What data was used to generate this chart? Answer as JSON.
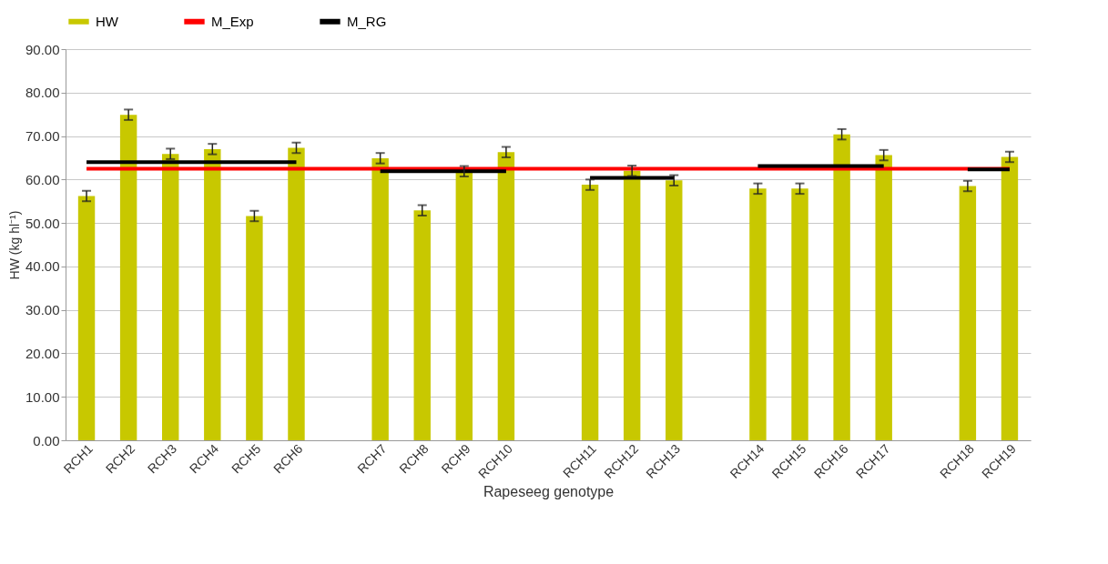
{
  "chart_data": {
    "type": "bar",
    "xlabel": "Rapeseeg genotype",
    "ylabel": "HW (kg hl⁻¹)",
    "categories": [
      "RCH1",
      "RCH2",
      "RCH3",
      "RCH4",
      "RCH5",
      "RCH6",
      null,
      "RCH7",
      "RCH8",
      "RCH9",
      "RCH10",
      null,
      "RCH11",
      "RCH12",
      "RCH13",
      null,
      "RCH14",
      "RCH15",
      "RCH16",
      "RCH17",
      null,
      "RCH18",
      "RCH19"
    ],
    "series": [
      {
        "name": "HW",
        "color": "#c8c800",
        "values": [
          56.2,
          74.9,
          65.9,
          67,
          51.6,
          67.3,
          null,
          64.9,
          52.9,
          61.9,
          66.3,
          null,
          58.8,
          62,
          59.8,
          null,
          57.9,
          57.9,
          70.4,
          65.6,
          null,
          58.5,
          65.2
        ],
        "errors": [
          1.2,
          1.2,
          1.2,
          1.2,
          1.2,
          1.2,
          null,
          1.2,
          1.2,
          1.2,
          1.2,
          null,
          1.2,
          1.2,
          1.2,
          null,
          1.2,
          1.2,
          1.2,
          1.2,
          null,
          1.2,
          1.2
        ]
      },
      {
        "name": "M_Exp",
        "type": "line",
        "color": "#ff0000",
        "values": [
          62.5,
          62.5,
          62.5,
          62.5,
          62.5,
          62.5,
          62.5,
          62.5,
          62.5,
          62.5,
          62.5,
          62.5,
          62.5,
          62.5,
          62.5,
          62.5,
          62.5,
          62.5,
          62.5,
          62.5,
          62.5,
          62.5,
          62.5
        ]
      },
      {
        "name": "M_RG",
        "type": "line",
        "color": "#000000",
        "values": [
          64,
          64,
          64,
          64,
          64,
          64,
          null,
          61.9,
          61.9,
          61.9,
          61.9,
          null,
          60.4,
          60.4,
          60.4,
          null,
          63.1,
          63.1,
          63.1,
          63.1,
          null,
          62.3,
          62.3
        ]
      }
    ],
    "ylim": [
      0,
      90
    ],
    "yticks": [
      {
        "value": 0,
        "label": "0.00"
      },
      {
        "value": 10,
        "label": "10.00"
      },
      {
        "value": 20,
        "label": "20.00"
      },
      {
        "value": 30,
        "label": "30.00"
      },
      {
        "value": 40,
        "label": "40.00"
      },
      {
        "value": 50,
        "label": "50.00"
      },
      {
        "value": 60,
        "label": "60.00"
      },
      {
        "value": 70,
        "label": "70.00"
      },
      {
        "value": 80,
        "label": "80.00"
      },
      {
        "value": 90,
        "label": "90.00"
      }
    ],
    "grid": "y",
    "legend": "top",
    "line_style": "solid",
    "marker": "none"
  }
}
